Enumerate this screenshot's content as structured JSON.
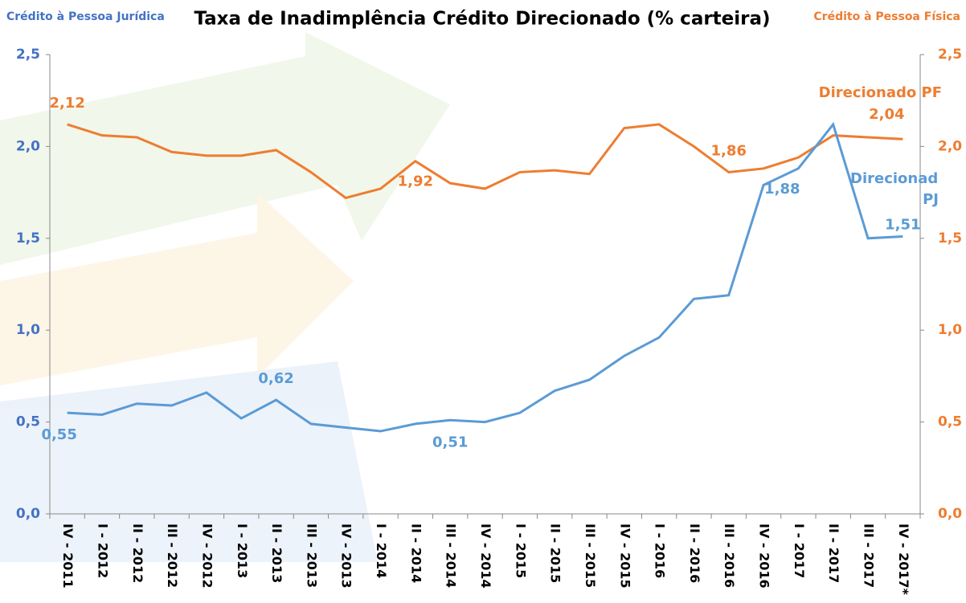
{
  "chart_data": {
    "type": "line",
    "title": "Taxa de Inadimplência Crédito Direcionado (% carteira)",
    "y_label": "Crédito à Pessoa Jurídica",
    "y2_label": "Crédito à Pessoa Física",
    "categories": [
      "IV - 2011",
      "I - 2012",
      "II - 2012",
      "III - 2012",
      "IV - 2012",
      "I - 2013",
      "II - 2013",
      "III - 2013",
      "IV - 2013",
      "I - 2014",
      "II - 2014",
      "III - 2014",
      "IV - 2014",
      "I - 2015",
      "II - 2015",
      "III - 2015",
      "IV - 2015",
      "I - 2016",
      "II - 2016",
      "III - 2016",
      "IV - 2016",
      "I - 2017",
      "II - 2017",
      "III - 2017",
      "IV - 2017*"
    ],
    "series": [
      {
        "name": "Direcionado PF",
        "color": "#ed7d31",
        "axis": "y2",
        "values": [
          2.12,
          2.06,
          2.05,
          1.97,
          1.95,
          1.95,
          1.98,
          1.86,
          1.72,
          1.77,
          1.92,
          1.8,
          1.77,
          1.86,
          1.87,
          1.85,
          2.1,
          2.12,
          2.0,
          1.86,
          1.88,
          1.94,
          2.06,
          2.05,
          2.04
        ],
        "value_labels": [
          "2,12",
          null,
          null,
          null,
          null,
          null,
          null,
          null,
          null,
          null,
          "1,92",
          null,
          null,
          null,
          null,
          null,
          null,
          null,
          null,
          "1,86",
          null,
          null,
          null,
          null,
          "2,04"
        ]
      },
      {
        "name": "Direcionado PJ",
        "color": "#5b9bd5",
        "values": [
          0.55,
          0.54,
          0.6,
          0.59,
          0.66,
          0.52,
          0.62,
          0.49,
          0.47,
          0.45,
          0.49,
          0.51,
          0.5,
          0.55,
          0.67,
          0.73,
          0.86,
          0.96,
          1.17,
          1.19,
          1.79,
          1.88,
          2.12,
          1.5,
          1.51
        ],
        "value_labels": [
          "0,55",
          null,
          null,
          null,
          null,
          null,
          "0,62",
          null,
          null,
          null,
          null,
          "0,51",
          null,
          null,
          null,
          null,
          null,
          null,
          null,
          null,
          null,
          "1,88",
          null,
          null,
          "1,51"
        ]
      }
    ],
    "ylim": [
      0,
      2.5
    ],
    "yticks": [
      {
        "value": 0,
        "label": "0,0"
      },
      {
        "value": 0.5,
        "label": "0,5"
      },
      {
        "value": 1,
        "label": "1,0"
      },
      {
        "value": 1.5,
        "label": "1,5"
      },
      {
        "value": 2,
        "label": "2,0"
      },
      {
        "value": 2.5,
        "label": "2,5"
      }
    ],
    "y2lim": [
      0,
      2.5
    ],
    "y2ticks": [
      {
        "value": 0,
        "label": "0,0"
      },
      {
        "value": 0.5,
        "label": "0,5"
      },
      {
        "value": 1,
        "label": "1,0"
      },
      {
        "value": 1.5,
        "label": "1,5"
      },
      {
        "value": 2,
        "label": "2,0"
      },
      {
        "value": 2.5,
        "label": "2,5"
      }
    ],
    "grid": false
  }
}
